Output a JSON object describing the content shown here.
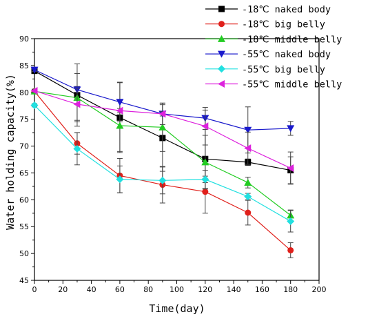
{
  "chart_data": {
    "type": "line",
    "title": "",
    "xlabel": "Time(day)",
    "ylabel": "Water holding capacity(%)",
    "xlim": [
      0,
      200
    ],
    "ylim": [
      45,
      90
    ],
    "xticks": [
      0,
      20,
      40,
      60,
      80,
      100,
      120,
      140,
      160,
      180,
      200
    ],
    "yticks": [
      45,
      50,
      55,
      60,
      65,
      70,
      75,
      80,
      85,
      90
    ],
    "x": [
      0,
      30,
      60,
      90,
      120,
      150,
      180
    ],
    "grid": false,
    "legend_position": "top-right",
    "series": [
      {
        "name": "-18℃ naked body",
        "color": "#000000",
        "marker": "square",
        "values": [
          84.0,
          79.5,
          75.3,
          71.5,
          67.6,
          67.0,
          65.5
        ],
        "errors": [
          0.3,
          5.8,
          6.5,
          6.2,
          5.5,
          0.6,
          2.5
        ]
      },
      {
        "name": "-18℃ big belly",
        "color": "#e0201b",
        "marker": "circle",
        "values": [
          80.2,
          70.5,
          64.5,
          62.8,
          61.5,
          57.6,
          50.6
        ],
        "errors": [
          0.3,
          2.0,
          3.2,
          3.4,
          4.0,
          2.3,
          1.4
        ]
      },
      {
        "name": "-18℃ middle belly",
        "color": "#22cc22",
        "marker": "triangle-up",
        "values": [
          80.2,
          79.0,
          73.8,
          73.5,
          67.0,
          63.2,
          57.1
        ],
        "errors": [
          0.3,
          4.5,
          4.8,
          4.5,
          5.0,
          1.0,
          1.0
        ]
      },
      {
        "name": "-55℃ naked body",
        "color": "#1a1acc",
        "marker": "triangle-down",
        "values": [
          84.2,
          80.5,
          78.2,
          76.0,
          75.2,
          73.0,
          73.3
        ],
        "errors": [
          0.3,
          0.6,
          3.7,
          2.0,
          1.5,
          4.3,
          1.3
        ]
      },
      {
        "name": "-55℃ big belly",
        "color": "#22e0e0",
        "marker": "diamond",
        "values": [
          77.6,
          69.5,
          63.8,
          63.6,
          63.8,
          60.6,
          56.0
        ],
        "errors": [
          0.3,
          3.0,
          2.5,
          2.5,
          0.6,
          0.6,
          2.0
        ]
      },
      {
        "name": "-55℃ middle belly",
        "color": "#dd22dd",
        "marker": "triangle-left",
        "values": [
          80.3,
          77.8,
          76.6,
          76.0,
          73.7,
          69.6,
          65.9
        ],
        "errors": [
          0.3,
          3.0,
          0.4,
          0.4,
          3.5,
          3.0,
          3.0
        ]
      }
    ]
  }
}
